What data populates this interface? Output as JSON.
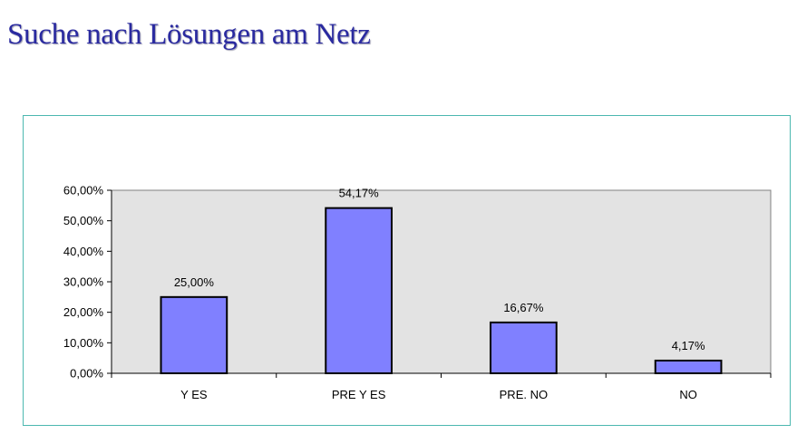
{
  "page": {
    "title": "Suche nach Lösungen am Netz"
  },
  "colors": {
    "bar_fill": "#8080ff",
    "plot_bg": "#e3e3e3",
    "frame_border": "#4cb8b0",
    "title": "#2a2aa0"
  },
  "chart_data": {
    "type": "bar",
    "title": "",
    "xlabel": "",
    "ylabel": "",
    "categories": [
      "Y ES",
      "PRE  Y ES",
      "PRE. NO",
      "NO"
    ],
    "values": [
      25.0,
      54.17,
      16.67,
      4.17
    ],
    "value_labels": [
      "25,00%",
      "54,17%",
      "16,67%",
      "4,17%"
    ],
    "yticks": [
      0,
      10,
      20,
      30,
      40,
      50,
      60
    ],
    "ytick_labels": [
      "0,00%",
      "10,00%",
      "20,00%",
      "30,00%",
      "40,00%",
      "50,00%",
      "60,00%"
    ],
    "ylim": [
      0,
      60
    ],
    "grid": false,
    "legend": "none"
  }
}
